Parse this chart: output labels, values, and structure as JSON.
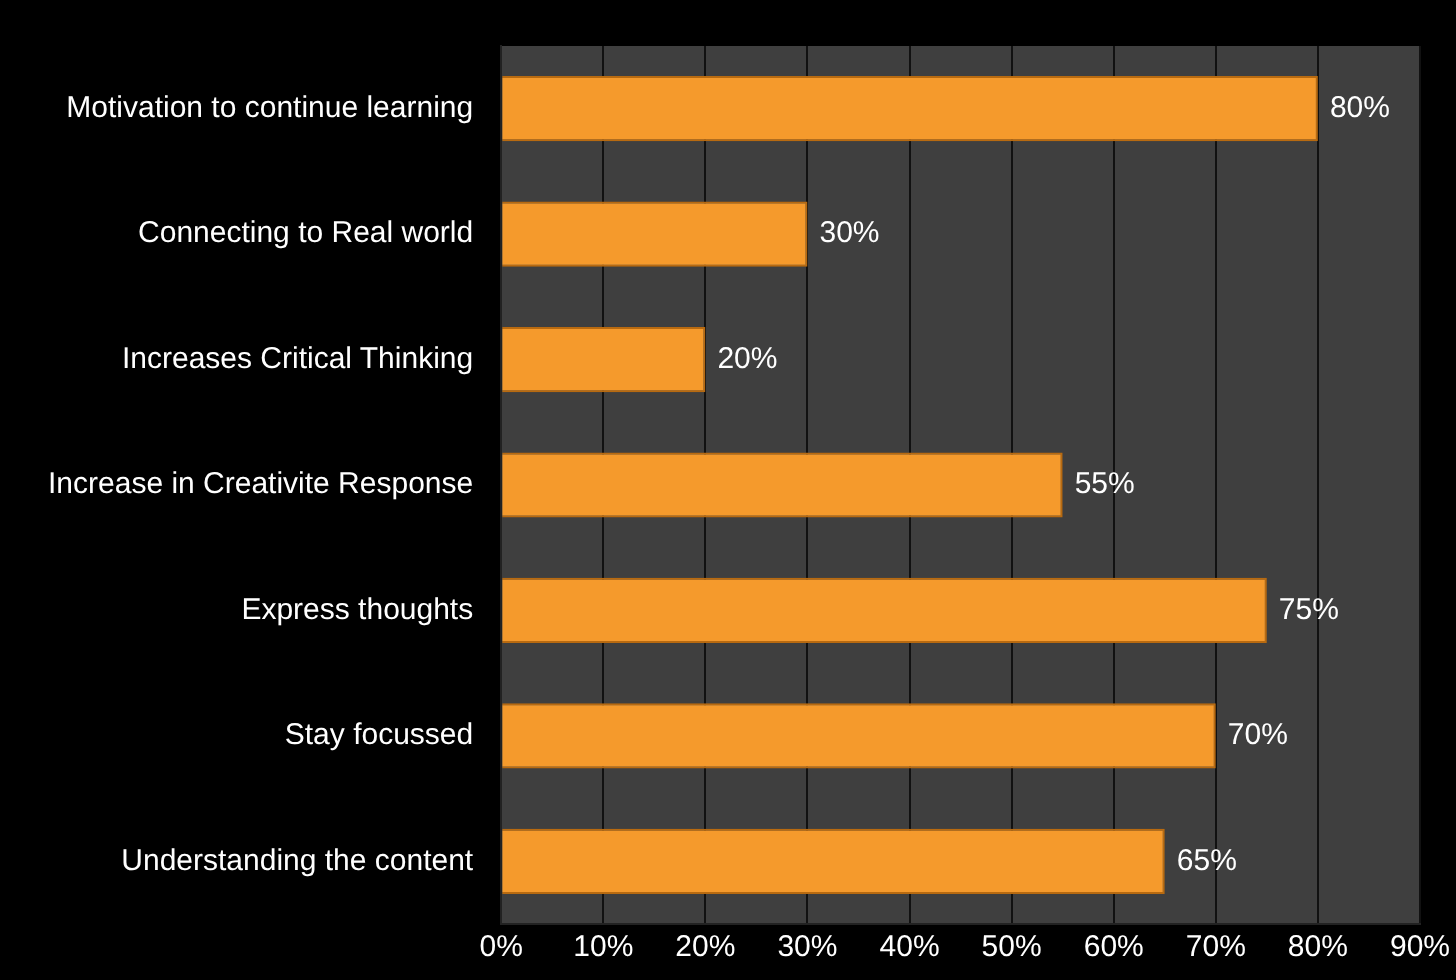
{
  "chart_data": {
    "type": "bar",
    "orientation": "horizontal",
    "categories": [
      "Motivation to continue learning",
      "Connecting to Real world",
      "Increases Critical Thinking",
      "Increase in Creativite Response",
      "Express thoughts",
      "Stay focussed",
      "Understanding the content"
    ],
    "values": [
      80,
      30,
      20,
      55,
      75,
      70,
      65
    ],
    "value_labels": [
      "80%",
      "30%",
      "20%",
      "55%",
      "75%",
      "70%",
      "65%"
    ],
    "color": "#f59a2c",
    "xlim": [
      0,
      90
    ],
    "xticks": [
      {
        "value": 0,
        "label": "0%"
      },
      {
        "value": 10,
        "label": "10%"
      },
      {
        "value": 20,
        "label": "20%"
      },
      {
        "value": 30,
        "label": "30%"
      },
      {
        "value": 40,
        "label": "40%"
      },
      {
        "value": 50,
        "label": "50%"
      },
      {
        "value": 60,
        "label": "60%"
      },
      {
        "value": 70,
        "label": "70%"
      },
      {
        "value": 80,
        "label": "80%"
      },
      {
        "value": 90,
        "label": "90%"
      }
    ],
    "grid": "x",
    "legend": false
  }
}
